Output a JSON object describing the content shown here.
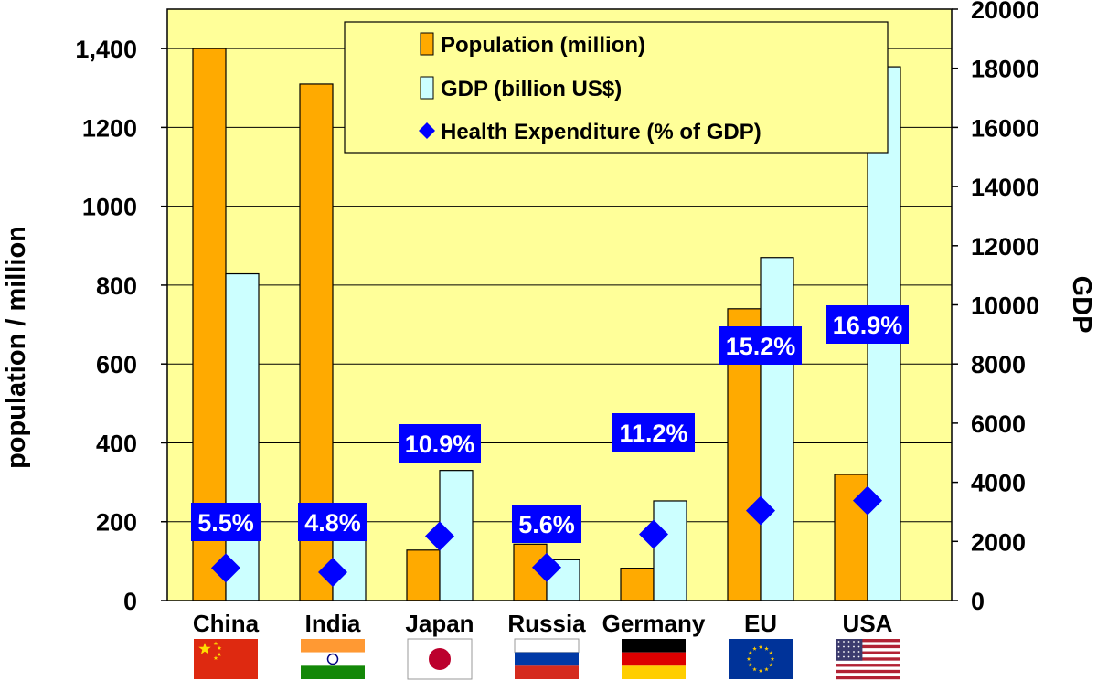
{
  "chart_data": {
    "type": "bar",
    "categories": [
      "China",
      "India",
      "Japan",
      "Russia",
      "Germany",
      "EU",
      "USA"
    ],
    "series": [
      {
        "name": "Population (million)",
        "axis": "left",
        "color": "#FFAA00",
        "values": [
          1400,
          1310,
          128,
          143,
          82,
          740,
          320
        ]
      },
      {
        "name": "GDP (billion US$)",
        "axis": "right",
        "color": "#CCFFFF",
        "values": [
          11050,
          2300,
          4400,
          1380,
          3370,
          11600,
          18050
        ]
      },
      {
        "name": "Health Expenditure (% of GDP)",
        "marker": "diamond",
        "color": "#0000FF",
        "values": [
          5.5,
          4.8,
          10.9,
          5.6,
          11.2,
          15.2,
          16.9
        ],
        "labels": [
          "5.5%",
          "4.8%",
          "10.9%",
          "5.6%",
          "11.2%",
          "15.2%",
          "16.9%"
        ]
      }
    ],
    "y_left": {
      "label": "population / million",
      "range": [
        0,
        1500
      ],
      "ticks": [
        0,
        200,
        400,
        600,
        800,
        1000,
        1200,
        1400
      ],
      "tick_labels": [
        "0",
        "200",
        "400",
        "600",
        "800",
        "1000",
        "1200",
        "1,400"
      ]
    },
    "y_right": {
      "label": "GDP",
      "range": [
        0,
        20000
      ],
      "ticks": [
        0,
        2000,
        4000,
        6000,
        8000,
        10000,
        12000,
        14000,
        16000,
        18000,
        20000
      ],
      "tick_labels": [
        "0",
        "2000",
        "4000",
        "6000",
        "8000",
        "10000",
        "12000",
        "14000",
        "16000",
        "18000",
        "20000"
      ]
    },
    "grid": true,
    "legend": "top-center",
    "flags": [
      "china-flag",
      "india-flag",
      "japan-flag",
      "russia-flag",
      "germany-flag",
      "eu-flag",
      "usa-flag"
    ],
    "colors": {
      "plot_background": "#FFFF99",
      "label_box": "#0000FF"
    }
  }
}
